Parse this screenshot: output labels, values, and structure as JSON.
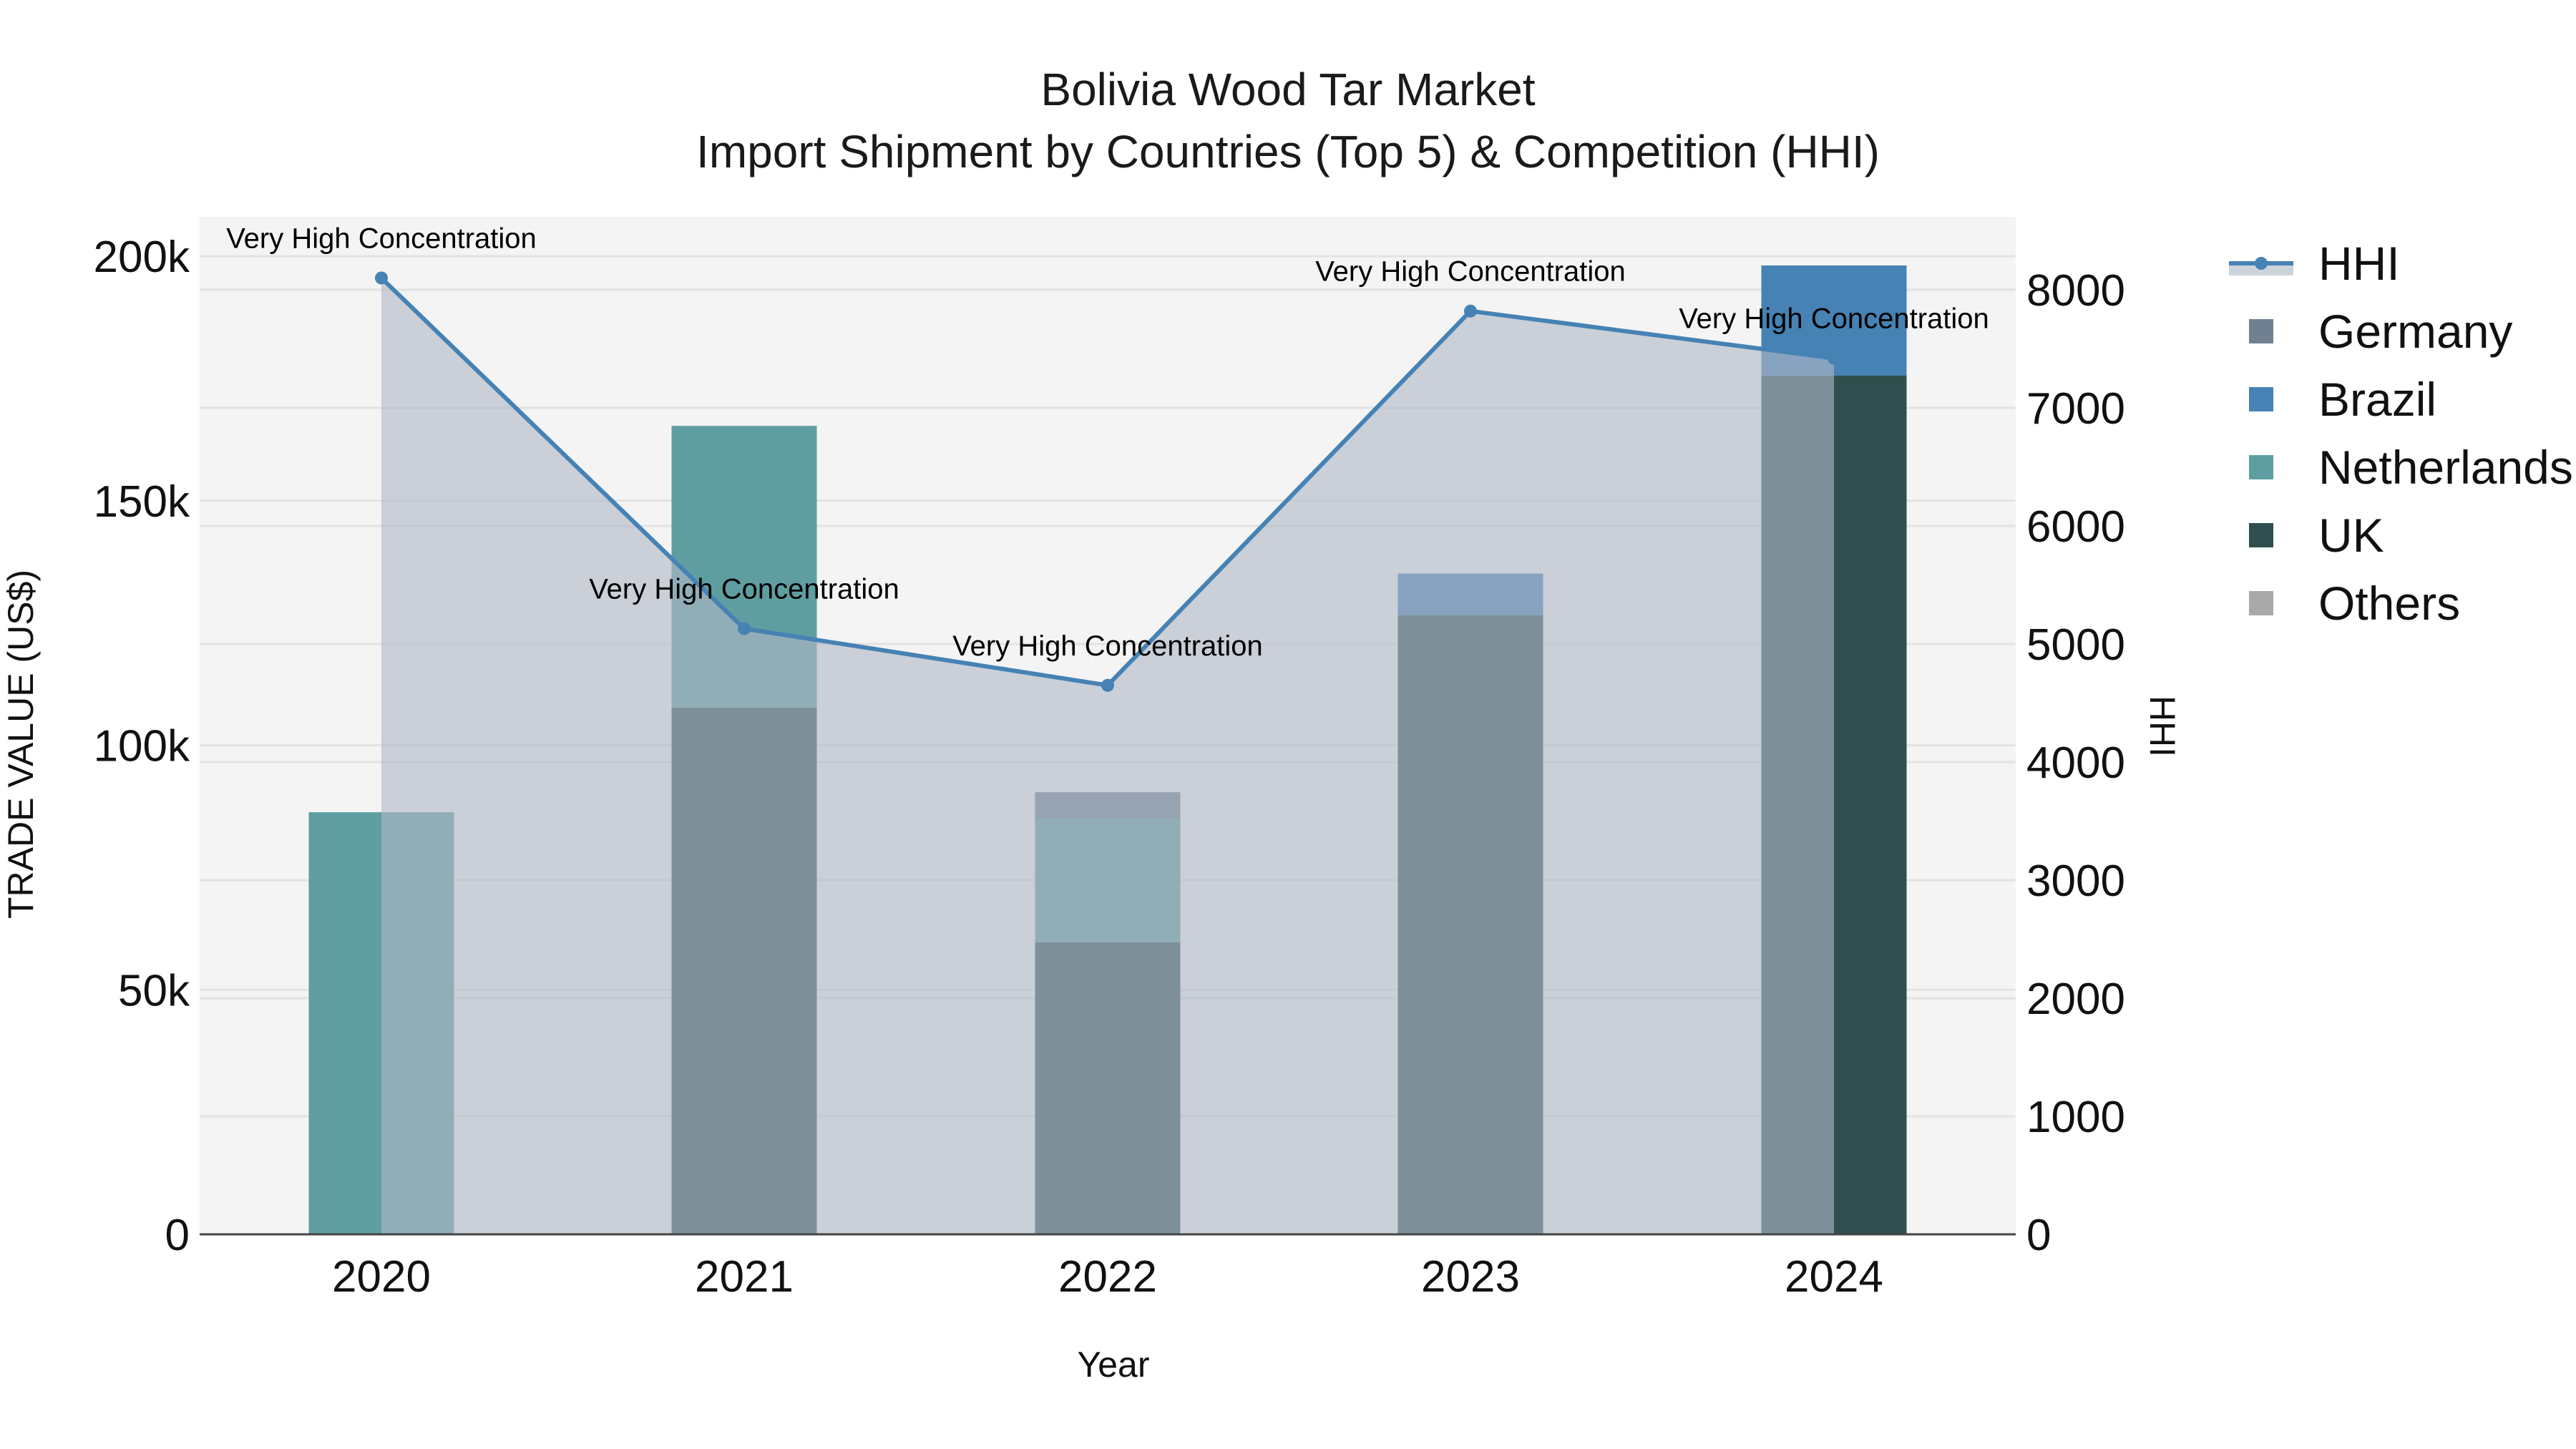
{
  "title": {
    "line1": "Bolivia Wood Tar Market",
    "line2": "Import Shipment by Countries (Top 5) & Competition (HHI)"
  },
  "axes": {
    "x_title": "Year",
    "y_left_title": "TRADE VALUE (US$)",
    "y_right_title": "HHI",
    "y_left_ticks": [
      "0",
      "50k",
      "100k",
      "150k",
      "200k"
    ],
    "y_right_ticks": [
      "0",
      "1000",
      "2000",
      "3000",
      "4000",
      "5000",
      "6000",
      "7000",
      "8000"
    ],
    "x_ticks": [
      "2020",
      "2021",
      "2022",
      "2023",
      "2024"
    ]
  },
  "legend": {
    "items": [
      {
        "label": "HHI",
        "color": "#4682B4",
        "type": "line"
      },
      {
        "label": "Germany",
        "color": "#708090",
        "type": "bar"
      },
      {
        "label": "Brazil",
        "color": "#4682B4",
        "type": "bar"
      },
      {
        "label": "Netherlands",
        "color": "#5F9EA0",
        "type": "bar"
      },
      {
        "label": "UK",
        "color": "#2F4F4F",
        "type": "bar"
      },
      {
        "label": "Others",
        "color": "#A9A9A9",
        "type": "bar"
      }
    ]
  },
  "colors": {
    "plot_bg": "#F4F4F4",
    "grid": "#E2E2E2",
    "hhi_line": "#4682B4",
    "hhi_fill": "rgba(176,184,198,0.62)",
    "Germany": "#708090",
    "Brazil": "#4682B4",
    "Netherlands": "#5F9EA0",
    "UK": "#2F4F4F",
    "Others": "#A9A9A9"
  },
  "chart_data": {
    "type": "bar",
    "title": "Bolivia Wood Tar Market — Import Shipment by Countries (Top 5) & Competition (HHI)",
    "xlabel": "Year",
    "ylabel": "TRADE VALUE (US$)",
    "y2label": "HHI",
    "categories": [
      "2020",
      "2021",
      "2022",
      "2023",
      "2024"
    ],
    "stacked": true,
    "series": [
      {
        "name": "UK",
        "values": [
          0,
          107700,
          59700,
          126600,
          175600
        ]
      },
      {
        "name": "Netherlands",
        "values": [
          86300,
          57600,
          25300,
          0,
          0
        ]
      },
      {
        "name": "Germany",
        "values": [
          0,
          0,
          5400,
          0,
          0
        ]
      },
      {
        "name": "Brazil",
        "values": [
          0,
          0,
          0,
          8500,
          22500
        ]
      },
      {
        "name": "Others",
        "values": [
          0,
          0,
          0,
          0,
          0
        ]
      }
    ],
    "line_series": {
      "name": "HHI",
      "axis": "y2",
      "type": "line+area",
      "values": [
        8100,
        5130,
        4650,
        7820,
        7420
      ]
    },
    "annotations": [
      "Very High Concentration",
      "Very High Concentration",
      "Very High Concentration",
      "Very High Concentration",
      "Very High Concentration"
    ],
    "ylim": [
      0,
      207000
    ],
    "y2lim": [
      0,
      8600
    ],
    "grid": true,
    "legend_position": "right"
  }
}
